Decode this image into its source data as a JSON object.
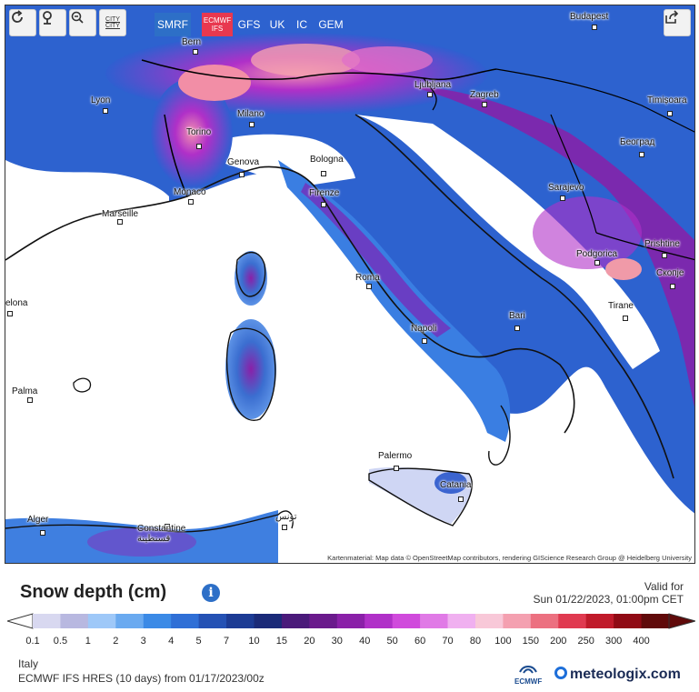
{
  "toolbar": {
    "buttons": [
      {
        "name": "refresh-icon"
      },
      {
        "name": "location-pin-icon"
      },
      {
        "name": "zoom-out-icon"
      }
    ],
    "city_toggle_label": "CITY\nCITY",
    "share_icon": "share-icon"
  },
  "models": [
    {
      "label": "SMRF",
      "selected": true
    },
    {
      "label": "ECMWF\nIFS",
      "selected": false,
      "highlight": true
    },
    {
      "label": "GFS",
      "selected": false
    },
    {
      "label": "UK",
      "selected": false
    },
    {
      "label": "IC",
      "selected": false
    },
    {
      "label": "GEM",
      "selected": false
    }
  ],
  "cities": [
    {
      "label": "Budapest"
    },
    {
      "label": "Bern"
    },
    {
      "label": "Ljubljana"
    },
    {
      "label": "Zagreb"
    },
    {
      "label": "Lyon"
    },
    {
      "label": "Milano"
    },
    {
      "label": "Timișoara"
    },
    {
      "label": "Torino"
    },
    {
      "label": "Београд"
    },
    {
      "label": "Genova"
    },
    {
      "label": "Bologna"
    },
    {
      "label": "Monaco"
    },
    {
      "label": "Sarajevo"
    },
    {
      "label": "Firenze"
    },
    {
      "label": "Marseille"
    },
    {
      "label": "Podgorica"
    },
    {
      "label": "Prishtine"
    },
    {
      "label": "Roma"
    },
    {
      "label": "Скопје"
    },
    {
      "label": "elona"
    },
    {
      "label": "Tirane"
    },
    {
      "label": "Bari"
    },
    {
      "label": "Napoli"
    },
    {
      "label": "Palma"
    },
    {
      "label": "Palermo"
    },
    {
      "label": "Catania"
    },
    {
      "label": "Alger"
    },
    {
      "label": "Constantine\nقسنطينة"
    },
    {
      "label": "تونس"
    }
  ],
  "attribution": "Kartenmaterial: Map data © OpenStreetMap contributors, rendering GIScience Research Group @ Heidelberg University",
  "legend": {
    "title": "Snow depth (cm)",
    "info_icon": "info-icon",
    "valid_label": "Valid for",
    "valid_time": "Sun 01/22/2023, 01:00pm CET",
    "ticks": [
      "0.1",
      "0.5",
      "1",
      "2",
      "3",
      "4",
      "5",
      "7",
      "10",
      "15",
      "20",
      "30",
      "40",
      "50",
      "60",
      "70",
      "80",
      "100",
      "150",
      "200",
      "250",
      "300",
      "400"
    ],
    "colors": [
      "#d8d8f0",
      "#b8b8e0",
      "#9ec8f8",
      "#6aaaf0",
      "#3b8ae6",
      "#2f6fd6",
      "#2451b4",
      "#1c3b94",
      "#1a2a78",
      "#4a1a7a",
      "#6a1a8c",
      "#8a20a8",
      "#b030c8",
      "#d04adc",
      "#e07ae6",
      "#f0b0f0",
      "#f8c8d8",
      "#f4a0b0",
      "#ec7080",
      "#e03a50",
      "#c01a2a",
      "#900a14",
      "#600a0a"
    ],
    "region": "Italy",
    "run": "ECMWF IFS HRES  (10 days)  from 01/17/2023/00z",
    "ecmwf_logo": "ECMWF",
    "brand": "meteologix.com"
  }
}
